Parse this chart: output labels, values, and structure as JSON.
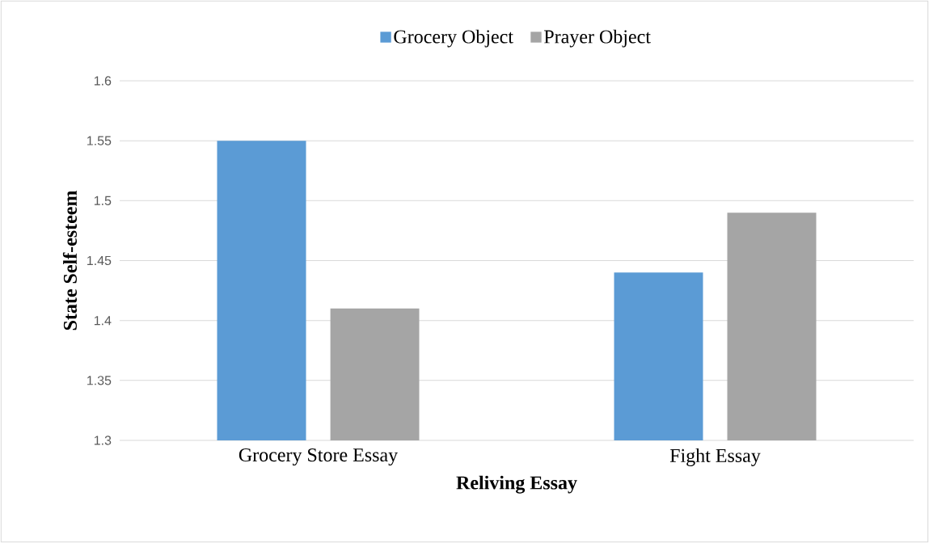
{
  "chart_data": {
    "type": "bar",
    "xlabel": "Reliving Essay",
    "ylabel": "State Self-esteem",
    "categories": [
      "Grocery Store Essay",
      "Fight Essay"
    ],
    "series": [
      {
        "name": "Grocery Object",
        "color": "#5b9bd5",
        "values": [
          1.55,
          1.44
        ]
      },
      {
        "name": "Prayer Object",
        "color": "#a5a5a5",
        "values": [
          1.41,
          1.49
        ]
      }
    ],
    "ylim": [
      1.3,
      1.6
    ],
    "yticks": [
      1.3,
      1.35,
      1.4,
      1.45,
      1.5,
      1.55,
      1.6
    ],
    "grid": "y",
    "legend": "top"
  }
}
